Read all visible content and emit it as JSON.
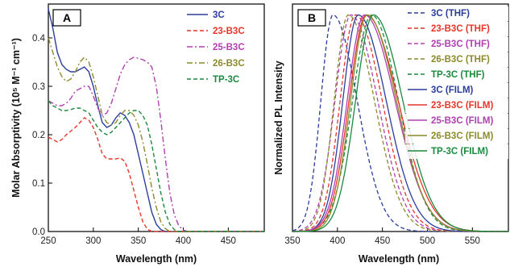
{
  "chart_data": [
    {
      "type": "line",
      "panel_label": "A",
      "xlabel": "Wavelength (nm)",
      "ylabel": "Molar Absorptivity (10⁵ M⁻¹ cm⁻¹)",
      "xlim": [
        250,
        490
      ],
      "ylim": [
        0.0,
        0.47
      ],
      "xticks": [
        250,
        300,
        350,
        400,
        450
      ],
      "yticks": [
        0.0,
        0.1,
        0.2,
        0.3,
        0.4
      ],
      "ytick_labels": [
        "0.0",
        "0.1",
        "0.2",
        "0.3",
        "0.4"
      ],
      "legend_position": "top-right",
      "series": [
        {
          "name": "3C",
          "color": "#2b3d9c",
          "dash": "solid",
          "points": [
            [
              250,
              0.46
            ],
            [
              255,
              0.42
            ],
            [
              260,
              0.37
            ],
            [
              265,
              0.345
            ],
            [
              270,
              0.335
            ],
            [
              275,
              0.33
            ],
            [
              280,
              0.33
            ],
            [
              285,
              0.335
            ],
            [
              290,
              0.34
            ],
            [
              295,
              0.33
            ],
            [
              300,
              0.3
            ],
            [
              305,
              0.26
            ],
            [
              310,
              0.225
            ],
            [
              315,
              0.215
            ],
            [
              320,
              0.22
            ],
            [
              325,
              0.235
            ],
            [
              330,
              0.245
            ],
            [
              335,
              0.24
            ],
            [
              340,
              0.225
            ],
            [
              345,
              0.2
            ],
            [
              350,
              0.16
            ],
            [
              355,
              0.12
            ],
            [
              360,
              0.08
            ],
            [
              365,
              0.04
            ],
            [
              370,
              0.015
            ],
            [
              375,
              0.004
            ],
            [
              380,
              0.0
            ],
            [
              490,
              0.0
            ]
          ]
        },
        {
          "name": "23-B3C",
          "color": "#e8342a",
          "dash": "dashed",
          "points": [
            [
              250,
              0.195
            ],
            [
              255,
              0.19
            ],
            [
              260,
              0.185
            ],
            [
              265,
              0.19
            ],
            [
              270,
              0.2
            ],
            [
              280,
              0.215
            ],
            [
              285,
              0.225
            ],
            [
              290,
              0.235
            ],
            [
              295,
              0.23
            ],
            [
              300,
              0.215
            ],
            [
              305,
              0.19
            ],
            [
              310,
              0.16
            ],
            [
              315,
              0.15
            ],
            [
              320,
              0.15
            ],
            [
              325,
              0.15
            ],
            [
              330,
              0.152
            ],
            [
              335,
              0.145
            ],
            [
              340,
              0.12
            ],
            [
              345,
              0.085
            ],
            [
              350,
              0.05
            ],
            [
              355,
              0.02
            ],
            [
              360,
              0.005
            ],
            [
              365,
              0.0
            ],
            [
              490,
              0.0
            ]
          ]
        },
        {
          "name": "25-B3C",
          "color": "#b040b0",
          "dash": "dashdot",
          "points": [
            [
              250,
              0.27
            ],
            [
              255,
              0.265
            ],
            [
              260,
              0.26
            ],
            [
              265,
              0.26
            ],
            [
              270,
              0.265
            ],
            [
              275,
              0.275
            ],
            [
              280,
              0.29
            ],
            [
              285,
              0.295
            ],
            [
              290,
              0.3
            ],
            [
              295,
              0.3
            ],
            [
              300,
              0.28
            ],
            [
              305,
              0.255
            ],
            [
              310,
              0.24
            ],
            [
              315,
              0.245
            ],
            [
              320,
              0.265
            ],
            [
              325,
              0.295
            ],
            [
              330,
              0.325
            ],
            [
              335,
              0.345
            ],
            [
              340,
              0.355
            ],
            [
              345,
              0.36
            ],
            [
              350,
              0.358
            ],
            [
              355,
              0.355
            ],
            [
              360,
              0.35
            ],
            [
              365,
              0.34
            ],
            [
              370,
              0.3
            ],
            [
              375,
              0.23
            ],
            [
              380,
              0.15
            ],
            [
              385,
              0.08
            ],
            [
              390,
              0.035
            ],
            [
              395,
              0.012
            ],
            [
              400,
              0.003
            ],
            [
              405,
              0.0
            ],
            [
              490,
              0.0
            ]
          ]
        },
        {
          "name": "26-B3C",
          "color": "#8c8a2a",
          "dash": "dashdot",
          "points": [
            [
              250,
              0.4
            ],
            [
              255,
              0.37
            ],
            [
              260,
              0.34
            ],
            [
              265,
              0.32
            ],
            [
              270,
              0.31
            ],
            [
              275,
              0.315
            ],
            [
              280,
              0.33
            ],
            [
              285,
              0.35
            ],
            [
              290,
              0.36
            ],
            [
              295,
              0.35
            ],
            [
              300,
              0.32
            ],
            [
              305,
              0.28
            ],
            [
              310,
              0.24
            ],
            [
              315,
              0.225
            ],
            [
              320,
              0.22
            ],
            [
              325,
              0.225
            ],
            [
              330,
              0.24
            ],
            [
              335,
              0.25
            ],
            [
              340,
              0.25
            ],
            [
              345,
              0.24
            ],
            [
              350,
              0.22
            ],
            [
              355,
              0.185
            ],
            [
              360,
              0.14
            ],
            [
              365,
              0.09
            ],
            [
              370,
              0.05
            ],
            [
              375,
              0.02
            ],
            [
              380,
              0.006
            ],
            [
              385,
              0.0
            ],
            [
              490,
              0.0
            ]
          ]
        },
        {
          "name": "TP-3C",
          "color": "#1a8a3e",
          "dash": "dashed",
          "points": [
            [
              250,
              0.27
            ],
            [
              255,
              0.26
            ],
            [
              260,
              0.255
            ],
            [
              265,
              0.25
            ],
            [
              270,
              0.25
            ],
            [
              275,
              0.252
            ],
            [
              280,
              0.255
            ],
            [
              285,
              0.255
            ],
            [
              290,
              0.25
            ],
            [
              295,
              0.245
            ],
            [
              300,
              0.23
            ],
            [
              305,
              0.215
            ],
            [
              310,
              0.205
            ],
            [
              315,
              0.2
            ],
            [
              320,
              0.205
            ],
            [
              325,
              0.215
            ],
            [
              330,
              0.225
            ],
            [
              335,
              0.235
            ],
            [
              340,
              0.245
            ],
            [
              345,
              0.25
            ],
            [
              350,
              0.25
            ],
            [
              355,
              0.24
            ],
            [
              360,
              0.22
            ],
            [
              365,
              0.18
            ],
            [
              370,
              0.13
            ],
            [
              375,
              0.08
            ],
            [
              380,
              0.04
            ],
            [
              385,
              0.015
            ],
            [
              390,
              0.004
            ],
            [
              395,
              0.0
            ],
            [
              490,
              0.0
            ]
          ]
        }
      ]
    },
    {
      "type": "line",
      "panel_label": "B",
      "xlabel": "Wavelength (nm)",
      "ylabel": "Normalized PL Intensity",
      "xlim": [
        350,
        590
      ],
      "ylim": [
        0.0,
        1.05
      ],
      "xticks": [
        350,
        400,
        450,
        500,
        550
      ],
      "legend_position": "top-right",
      "series": [
        {
          "name": "3C (THF)",
          "color": "#2b3d9c",
          "dash": "dashed",
          "peak": 395,
          "left_width": 19,
          "right_width": 38
        },
        {
          "name": "23-B3C (THF)",
          "color": "#e8342a",
          "dash": "dashed",
          "peak": 420,
          "left_width": 24,
          "right_width": 42
        },
        {
          "name": "25-B3C (THF)",
          "color": "#b040b0",
          "dash": "dashed",
          "peak": 415,
          "left_width": 25,
          "right_width": 42
        },
        {
          "name": "26-B3C (THF)",
          "color": "#8c8a2a",
          "dash": "dashed",
          "peak": 412,
          "left_width": 22,
          "right_width": 41
        },
        {
          "name": "TP-3C (THF)",
          "color": "#1a8a3e",
          "dash": "dashed",
          "peak": 438,
          "left_width": 30,
          "right_width": 42
        },
        {
          "name": "3C (FILM)",
          "color": "#2b3d9c",
          "dash": "solid",
          "peak": 423,
          "left_width": 24,
          "right_width": 44
        },
        {
          "name": "23-B3C (FILM)",
          "color": "#e8342a",
          "dash": "solid",
          "peak": 432,
          "left_width": 27,
          "right_width": 50
        },
        {
          "name": "25-B3C (FILM)",
          "color": "#b040b0",
          "dash": "solid",
          "peak": 430,
          "left_width": 27,
          "right_width": 48
        },
        {
          "name": "26-B3C (FILM)",
          "color": "#8c8a2a",
          "dash": "solid",
          "peak": 433,
          "left_width": 26,
          "right_width": 46
        },
        {
          "name": "TP-3C (FILM)",
          "color": "#1a8a3e",
          "dash": "solid",
          "peak": 440,
          "left_width": 28,
          "right_width": 46
        }
      ]
    }
  ]
}
